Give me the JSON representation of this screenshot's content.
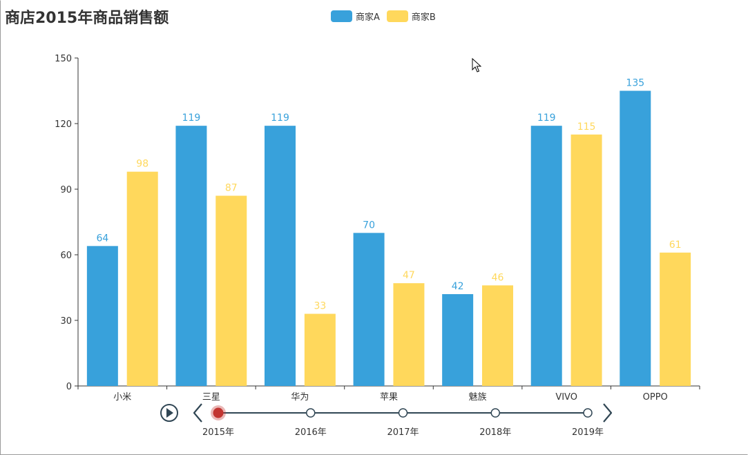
{
  "title": "商店2015年商品销售额",
  "legend": [
    {
      "label": "商家A",
      "color": "#38a1db"
    },
    {
      "label": "商家B",
      "color": "#ffd85c"
    }
  ],
  "chart_data": {
    "type": "bar",
    "title": "商店2015年商品销售额",
    "categories": [
      "小米",
      "三星",
      "华为",
      "苹果",
      "魅族",
      "VIVO",
      "OPPO"
    ],
    "series": [
      {
        "name": "商家A",
        "color": "#38a1db",
        "label_color": "#38a1db",
        "values": [
          64,
          119,
          119,
          70,
          42,
          119,
          135
        ]
      },
      {
        "name": "商家B",
        "color": "#ffd85c",
        "label_color": "#ffd85c",
        "values": [
          98,
          87,
          33,
          47,
          46,
          115,
          61
        ]
      }
    ],
    "y_ticks": [
      "0",
      "30",
      "60",
      "90",
      "120",
      "150"
    ],
    "ylim": [
      0,
      150
    ],
    "grid": false,
    "legend_position": "top-center"
  },
  "timeline": {
    "items": [
      "2015年",
      "2016年",
      "2017年",
      "2018年",
      "2019年"
    ],
    "active_index": 0,
    "active_color": "#c23531",
    "line_color": "#304654",
    "play_icon": "play-icon",
    "prev_icon": "chevron-left-icon",
    "next_icon": "chevron-right-icon"
  }
}
